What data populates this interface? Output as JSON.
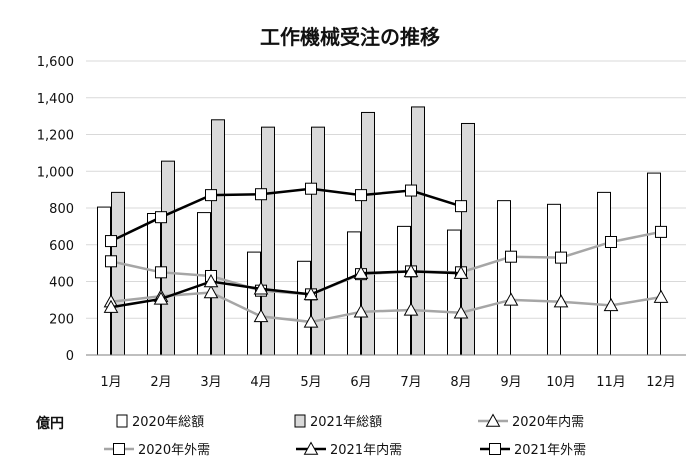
{
  "chart_data": {
    "type": "bar",
    "title": "工作機械受注の推移",
    "unit_label": "億円",
    "categories": [
      "1月",
      "2月",
      "3月",
      "4月",
      "5月",
      "6月",
      "7月",
      "8月",
      "9月",
      "10月",
      "11月",
      "12月"
    ],
    "ylim": [
      0,
      1600
    ],
    "yticks": [
      0,
      200,
      400,
      600,
      800,
      1000,
      1200,
      1400,
      1600
    ],
    "ytick_labels": [
      "0",
      "200",
      "400",
      "600",
      "800",
      "1,000",
      "1,200",
      "1,400",
      "1,600"
    ],
    "grid": true,
    "legend_position": "bottom",
    "bar_series": [
      {
        "name": "2020年総額",
        "color": "#ffffff",
        "values": [
          805,
          770,
          775,
          560,
          510,
          670,
          700,
          680,
          840,
          820,
          885,
          990
        ]
      },
      {
        "name": "2021年総額",
        "color": "#d9d9d9",
        "values": [
          885,
          1055,
          1280,
          1240,
          1240,
          1320,
          1350,
          1260,
          null,
          null,
          null,
          null
        ]
      }
    ],
    "line_series": [
      {
        "name": "2020年内需",
        "color": "#a6a6a6",
        "marker": "triangle",
        "values": [
          290,
          320,
          340,
          210,
          180,
          235,
          245,
          230,
          300,
          290,
          270,
          315
        ]
      },
      {
        "name": "2020年外需",
        "color": "#a6a6a6",
        "marker": "square",
        "values": [
          510,
          450,
          430,
          350,
          330,
          440,
          455,
          450,
          535,
          530,
          615,
          670
        ]
      },
      {
        "name": "2021年内需",
        "color": "#000000",
        "marker": "triangle",
        "values": [
          260,
          305,
          400,
          360,
          330,
          445,
          455,
          445,
          null,
          null,
          null,
          null
        ]
      },
      {
        "name": "2021年外需",
        "color": "#000000",
        "marker": "square",
        "values": [
          620,
          750,
          870,
          875,
          905,
          870,
          895,
          810,
          null,
          null,
          null,
          null
        ]
      }
    ]
  }
}
